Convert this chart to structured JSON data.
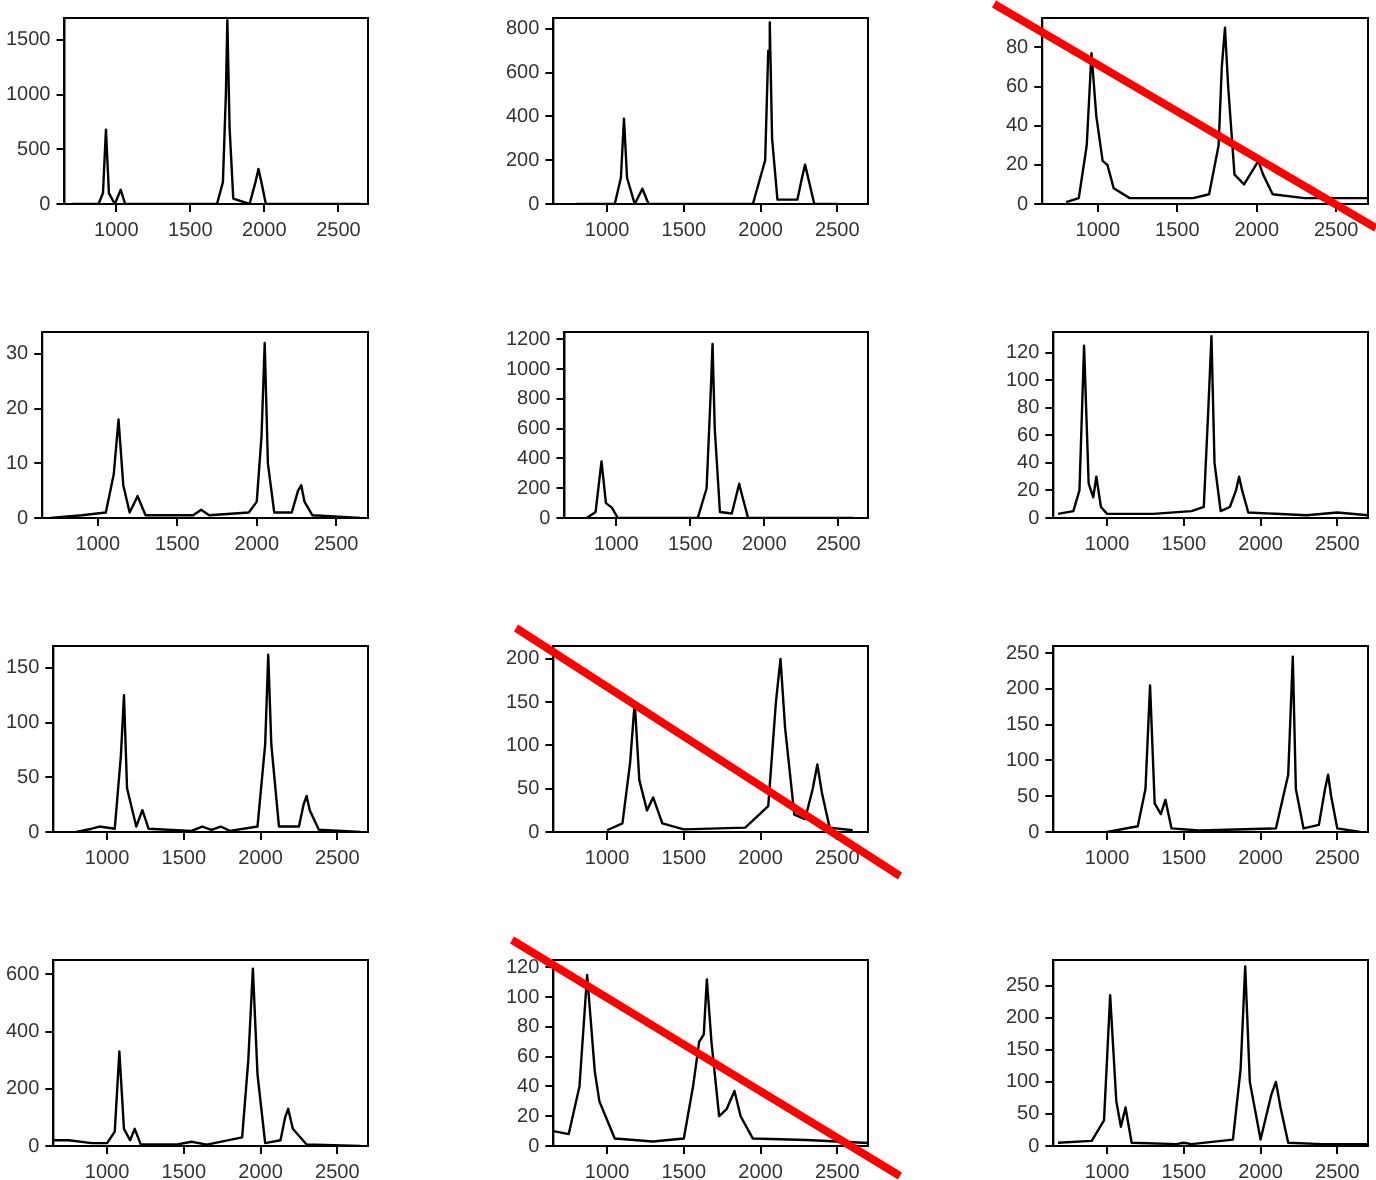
{
  "chart_data": [
    {
      "type": "line",
      "xlim": [
        650,
        2700
      ],
      "xticks": [
        1000,
        1500,
        2000,
        2500
      ],
      "ylim": [
        0,
        1700
      ],
      "yticks": [
        0,
        500,
        1000,
        1500
      ],
      "x": [
        700,
        880,
        910,
        930,
        950,
        990,
        1030,
        1060,
        1300,
        1500,
        1680,
        1720,
        1740,
        1750,
        1765,
        1790,
        1900,
        1940,
        1960,
        1980,
        2010,
        2300,
        2650
      ],
      "series": [
        {
          "color": "#000000",
          "values": [
            0,
            0,
            100,
            680,
            100,
            0,
            130,
            0,
            0,
            0,
            0,
            200,
            1000,
            1680,
            700,
            50,
            0,
            200,
            320,
            200,
            0,
            0,
            0
          ]
        }
      ]
    },
    {
      "type": "line",
      "xlim": [
        650,
        2700
      ],
      "xticks": [
        1000,
        1500,
        2000,
        2500
      ],
      "ylim": [
        0,
        850
      ],
      "yticks": [
        0,
        200,
        400,
        600,
        800
      ],
      "x": [
        800,
        1050,
        1090,
        1110,
        1130,
        1180,
        1230,
        1270,
        1500,
        1950,
        2030,
        2050,
        2060,
        2075,
        2110,
        2240,
        2270,
        2290,
        2310,
        2350,
        2500
      ],
      "series": [
        {
          "color": "#000000",
          "values": [
            0,
            0,
            120,
            390,
            120,
            0,
            70,
            0,
            0,
            0,
            200,
            700,
            830,
            300,
            20,
            20,
            120,
            180,
            120,
            0,
            0
          ]
        }
      ]
    },
    {
      "type": "line",
      "xlim": [
        650,
        2700
      ],
      "xticks": [
        1000,
        1500,
        2000,
        2500
      ],
      "ylim": [
        0,
        95
      ],
      "yticks": [
        0,
        20,
        40,
        60,
        80
      ],
      "x": [
        800,
        880,
        930,
        960,
        990,
        1030,
        1060,
        1100,
        1200,
        1400,
        1600,
        1700,
        1760,
        1780,
        1800,
        1820,
        1860,
        1920,
        1980,
        2010,
        2040,
        2100,
        2300,
        2700
      ],
      "series": [
        {
          "color": "#000000",
          "values": [
            1,
            3,
            30,
            77,
            45,
            22,
            20,
            8,
            3,
            3,
            3,
            5,
            30,
            70,
            90,
            60,
            15,
            10,
            18,
            22,
            15,
            5,
            3,
            3
          ]
        }
      ]
    },
    {
      "type": "line",
      "xlim": [
        650,
        2700
      ],
      "xticks": [
        1000,
        1500,
        2000,
        2500
      ],
      "ylim": [
        0,
        34
      ],
      "yticks": [
        0,
        10,
        20,
        30
      ],
      "x": [
        700,
        900,
        1050,
        1100,
        1130,
        1160,
        1200,
        1250,
        1300,
        1600,
        1650,
        1700,
        1950,
        2000,
        2030,
        2050,
        2070,
        2110,
        2220,
        2260,
        2280,
        2300,
        2350,
        2650
      ],
      "series": [
        {
          "color": "#000000",
          "values": [
            0,
            0.5,
            1,
            8,
            18,
            6,
            1,
            4,
            0.5,
            0.5,
            1.5,
            0.5,
            1,
            3,
            15,
            32,
            10,
            1,
            1,
            5,
            6,
            3,
            0.5,
            0
          ]
        }
      ]
    },
    {
      "type": "line",
      "xlim": [
        650,
        2700
      ],
      "xticks": [
        1000,
        1500,
        2000,
        2500
      ],
      "ylim": [
        0,
        1250
      ],
      "yticks": [
        0,
        200,
        400,
        600,
        800,
        1000,
        1200
      ],
      "x": [
        800,
        860,
        900,
        930,
        970,
        1010,
        1300,
        1550,
        1610,
        1640,
        1650,
        1665,
        1700,
        1780,
        1810,
        1830,
        1850,
        1890,
        2200,
        2600
      ],
      "series": [
        {
          "color": "#000000",
          "values": [
            0,
            40,
            380,
            100,
            70,
            0,
            0,
            0,
            200,
            900,
            1170,
            600,
            40,
            30,
            150,
            230,
            150,
            0,
            0,
            0
          ]
        }
      ]
    },
    {
      "type": "line",
      "xlim": [
        650,
        2700
      ],
      "xticks": [
        1000,
        1500,
        2000,
        2500
      ],
      "ylim": [
        0,
        135
      ],
      "yticks": [
        0,
        20,
        40,
        60,
        80,
        100,
        120
      ],
      "x": [
        680,
        780,
        820,
        850,
        880,
        910,
        930,
        960,
        1000,
        1300,
        1550,
        1630,
        1660,
        1680,
        1700,
        1740,
        1800,
        1840,
        1860,
        1880,
        1920,
        2300,
        2500,
        2700
      ],
      "series": [
        {
          "color": "#000000",
          "values": [
            3,
            5,
            20,
            125,
            25,
            15,
            30,
            8,
            3,
            3,
            5,
            8,
            80,
            132,
            40,
            5,
            8,
            20,
            30,
            20,
            4,
            2,
            4,
            2
          ]
        }
      ]
    },
    {
      "type": "line",
      "xlim": [
        650,
        2700
      ],
      "xticks": [
        1000,
        1500,
        2000,
        2500
      ],
      "ylim": [
        0,
        170
      ],
      "yticks": [
        0,
        50,
        100,
        150
      ],
      "x": [
        800,
        900,
        950,
        1050,
        1090,
        1110,
        1130,
        1190,
        1230,
        1270,
        1550,
        1620,
        1680,
        1740,
        1800,
        1980,
        2030,
        2050,
        2070,
        2120,
        2250,
        2280,
        2300,
        2320,
        2380,
        2650
      ],
      "series": [
        {
          "color": "#000000",
          "values": [
            0,
            3,
            5,
            3,
            70,
            125,
            40,
            5,
            20,
            3,
            1,
            5,
            2,
            5,
            1,
            5,
            80,
            162,
            80,
            5,
            5,
            25,
            33,
            20,
            2,
            0
          ]
        }
      ]
    },
    {
      "type": "line",
      "xlim": [
        650,
        2700
      ],
      "xticks": [
        1000,
        1500,
        2000,
        2500
      ],
      "ylim": [
        0,
        215
      ],
      "yticks": [
        0,
        50,
        100,
        150,
        200
      ],
      "x": [
        1000,
        1100,
        1150,
        1180,
        1210,
        1260,
        1300,
        1360,
        1500,
        1900,
        2050,
        2100,
        2130,
        2160,
        2220,
        2290,
        2340,
        2370,
        2400,
        2450,
        2600
      ],
      "series": [
        {
          "color": "#000000",
          "values": [
            2,
            10,
            80,
            150,
            60,
            25,
            40,
            10,
            3,
            5,
            30,
            150,
            200,
            120,
            20,
            15,
            50,
            78,
            45,
            5,
            2
          ]
        }
      ]
    },
    {
      "type": "line",
      "xlim": [
        650,
        2700
      ],
      "xticks": [
        1000,
        1500,
        2000,
        2500
      ],
      "ylim": [
        0,
        260
      ],
      "yticks": [
        0,
        50,
        100,
        150,
        200,
        250
      ],
      "x": [
        1000,
        1200,
        1250,
        1280,
        1310,
        1350,
        1380,
        1420,
        1600,
        2100,
        2180,
        2210,
        2230,
        2280,
        2380,
        2420,
        2440,
        2460,
        2500,
        2650
      ],
      "series": [
        {
          "color": "#000000",
          "values": [
            0,
            8,
            60,
            205,
            40,
            25,
            45,
            5,
            2,
            5,
            80,
            245,
            60,
            5,
            10,
            60,
            80,
            50,
            5,
            0
          ]
        }
      ]
    },
    {
      "type": "line",
      "xlim": [
        650,
        2700
      ],
      "xticks": [
        1000,
        1500,
        2000,
        2500
      ],
      "ylim": [
        0,
        650
      ],
      "yticks": [
        0,
        200,
        400,
        600
      ],
      "x": [
        650,
        750,
        900,
        1000,
        1050,
        1080,
        1110,
        1150,
        1180,
        1220,
        1450,
        1550,
        1650,
        1880,
        1920,
        1950,
        1980,
        2030,
        2130,
        2160,
        2180,
        2210,
        2300,
        2650
      ],
      "series": [
        {
          "color": "#000000",
          "values": [
            20,
            20,
            10,
            10,
            50,
            330,
            60,
            20,
            60,
            5,
            5,
            15,
            5,
            30,
            300,
            620,
            250,
            10,
            20,
            100,
            130,
            60,
            5,
            0
          ]
        }
      ]
    },
    {
      "type": "line",
      "xlim": [
        650,
        2700
      ],
      "xticks": [
        1000,
        1500,
        2000,
        2500
      ],
      "ylim": [
        0,
        125
      ],
      "yticks": [
        0,
        20,
        40,
        60,
        80,
        100,
        120
      ],
      "x": [
        650,
        750,
        820,
        870,
        920,
        950,
        990,
        1050,
        1300,
        1500,
        1560,
        1600,
        1630,
        1650,
        1680,
        1730,
        1780,
        1830,
        1870,
        1950,
        2300,
        2700
      ],
      "series": [
        {
          "color": "#000000",
          "values": [
            10,
            8,
            40,
            115,
            50,
            30,
            20,
            5,
            3,
            5,
            40,
            70,
            75,
            112,
            70,
            20,
            25,
            37,
            20,
            5,
            4,
            2
          ]
        }
      ]
    },
    {
      "type": "line",
      "xlim": [
        650,
        2700
      ],
      "xticks": [
        1000,
        1500,
        2000,
        2500
      ],
      "ylim": [
        0,
        290
      ],
      "yticks": [
        0,
        50,
        100,
        150,
        200,
        250
      ],
      "x": [
        680,
        900,
        980,
        1020,
        1060,
        1090,
        1120,
        1160,
        1450,
        1500,
        1550,
        1820,
        1870,
        1900,
        1930,
        2000,
        2070,
        2100,
        2130,
        2180,
        2400,
        2700
      ],
      "series": [
        {
          "color": "#000000",
          "values": [
            5,
            8,
            40,
            235,
            70,
            30,
            60,
            5,
            3,
            5,
            3,
            10,
            120,
            280,
            100,
            10,
            80,
            100,
            60,
            5,
            3,
            3
          ]
        }
      ]
    }
  ]
}
